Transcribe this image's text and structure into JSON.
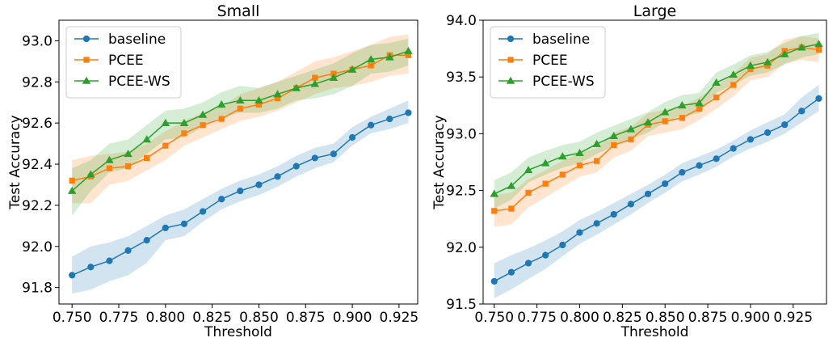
{
  "chart_data": [
    {
      "type": "line",
      "title": "Small",
      "xlabel": "Threshold",
      "ylabel": "Test Accuracy",
      "xlim": [
        0.743,
        0.935
      ],
      "ylim": [
        91.72,
        93.1
      ],
      "xticks": [
        0.75,
        0.775,
        0.8,
        0.825,
        0.85,
        0.875,
        0.9,
        0.925
      ],
      "xtick_labels": [
        "0.750",
        "0.775",
        "0.800",
        "0.825",
        "0.850",
        "0.875",
        "0.900",
        "0.925"
      ],
      "yticks": [
        91.8,
        92.0,
        92.2,
        92.4,
        92.6,
        92.8,
        93.0
      ],
      "ytick_labels": [
        "91.8",
        "92.0",
        "92.2",
        "92.4",
        "92.6",
        "92.8",
        "93.0"
      ],
      "legend_position": "top-left",
      "shaded_band": true,
      "x": [
        0.75,
        0.76,
        0.77,
        0.78,
        0.79,
        0.8,
        0.81,
        0.82,
        0.83,
        0.84,
        0.85,
        0.86,
        0.87,
        0.88,
        0.89,
        0.9,
        0.91,
        0.92,
        0.93
      ],
      "series": [
        {
          "name": "baseline",
          "color": "#1f77b4",
          "marker": "circle",
          "values": [
            91.86,
            91.9,
            91.93,
            91.98,
            92.03,
            92.09,
            92.11,
            92.17,
            92.23,
            92.27,
            92.3,
            92.34,
            92.39,
            92.43,
            92.45,
            92.53,
            92.59,
            92.62,
            92.65
          ],
          "lower": [
            91.77,
            91.79,
            91.83,
            91.86,
            91.92,
            92.03,
            92.05,
            92.12,
            92.18,
            92.22,
            92.25,
            92.29,
            92.34,
            92.38,
            92.41,
            92.49,
            92.55,
            92.57,
            92.6
          ],
          "upper": [
            91.95,
            92.0,
            92.02,
            92.05,
            92.1,
            92.15,
            92.18,
            92.23,
            92.28,
            92.32,
            92.35,
            92.39,
            92.44,
            92.48,
            92.5,
            92.58,
            92.63,
            92.67,
            92.71
          ]
        },
        {
          "name": "PCEE",
          "color": "#ff7f0e",
          "marker": "square",
          "values": [
            92.32,
            92.34,
            92.38,
            92.39,
            92.43,
            92.49,
            92.55,
            92.59,
            92.62,
            92.67,
            92.69,
            92.72,
            92.77,
            92.82,
            92.84,
            92.86,
            92.88,
            92.93,
            92.93
          ],
          "lower": [
            92.21,
            92.21,
            92.3,
            92.32,
            92.37,
            92.42,
            92.49,
            92.53,
            92.57,
            92.61,
            92.63,
            92.66,
            92.7,
            92.74,
            92.77,
            92.78,
            92.8,
            92.83,
            92.84
          ],
          "upper": [
            92.42,
            92.44,
            92.45,
            92.46,
            92.5,
            92.56,
            92.61,
            92.65,
            92.68,
            92.74,
            92.77,
            92.8,
            92.85,
            92.9,
            92.92,
            92.95,
            92.98,
            93.02,
            93.03
          ]
        },
        {
          "name": "PCEE-WS",
          "color": "#2ca02c",
          "marker": "triangle",
          "values": [
            92.27,
            92.35,
            92.42,
            92.45,
            92.52,
            92.6,
            92.6,
            92.64,
            92.69,
            92.71,
            92.71,
            92.74,
            92.77,
            92.79,
            92.82,
            92.86,
            92.91,
            92.92,
            92.95
          ],
          "lower": [
            92.15,
            92.27,
            92.36,
            92.38,
            92.45,
            92.52,
            92.53,
            92.58,
            92.63,
            92.65,
            92.65,
            92.67,
            92.71,
            92.72,
            92.74,
            92.78,
            92.84,
            92.85,
            92.88
          ],
          "upper": [
            92.38,
            92.42,
            92.5,
            92.52,
            92.59,
            92.66,
            92.67,
            92.7,
            92.75,
            92.78,
            92.77,
            92.8,
            92.83,
            92.86,
            92.89,
            92.94,
            92.98,
            92.99,
            93.01
          ]
        }
      ]
    },
    {
      "type": "line",
      "title": "Large",
      "xlabel": "Threshold",
      "ylabel": "Test Accuracy",
      "xlim": [
        0.7435,
        0.9445
      ],
      "ylim": [
        91.5,
        94.0
      ],
      "xticks": [
        0.75,
        0.775,
        0.8,
        0.825,
        0.85,
        0.875,
        0.9,
        0.925
      ],
      "xtick_labels": [
        "0.750",
        "0.775",
        "0.800",
        "0.825",
        "0.850",
        "0.875",
        "0.900",
        "0.925"
      ],
      "yticks": [
        91.5,
        92.0,
        92.5,
        93.0,
        93.5,
        94.0
      ],
      "ytick_labels": [
        "91.5",
        "92.0",
        "92.5",
        "93.0",
        "93.5",
        "94.0"
      ],
      "legend_position": "top-left",
      "shaded_band": true,
      "x": [
        0.75,
        0.76,
        0.77,
        0.78,
        0.79,
        0.8,
        0.81,
        0.82,
        0.83,
        0.84,
        0.85,
        0.86,
        0.87,
        0.88,
        0.89,
        0.9,
        0.91,
        0.92,
        0.93,
        0.94
      ],
      "series": [
        {
          "name": "baseline",
          "color": "#1f77b4",
          "marker": "circle",
          "values": [
            91.7,
            91.78,
            91.86,
            91.93,
            92.02,
            92.13,
            92.21,
            92.29,
            92.38,
            92.47,
            92.56,
            92.66,
            92.72,
            92.78,
            92.87,
            92.95,
            93.01,
            93.08,
            93.2,
            93.31
          ],
          "lower": [
            91.55,
            91.63,
            91.72,
            91.81,
            91.92,
            92.03,
            92.11,
            92.2,
            92.29,
            92.39,
            92.48,
            92.58,
            92.64,
            92.71,
            92.8,
            92.87,
            92.93,
            93.0,
            93.1,
            93.2
          ],
          "upper": [
            91.86,
            91.93,
            91.99,
            92.06,
            92.14,
            92.24,
            92.31,
            92.39,
            92.47,
            92.55,
            92.64,
            92.74,
            92.8,
            92.86,
            92.94,
            93.03,
            93.1,
            93.17,
            93.32,
            93.43
          ]
        },
        {
          "name": "PCEE",
          "color": "#ff7f0e",
          "marker": "square",
          "values": [
            92.32,
            92.34,
            92.48,
            92.56,
            92.64,
            92.72,
            92.76,
            92.9,
            92.95,
            93.08,
            93.11,
            93.14,
            93.22,
            93.32,
            93.43,
            93.57,
            93.6,
            93.73,
            93.76,
            93.74
          ],
          "lower": [
            92.18,
            92.2,
            92.35,
            92.44,
            92.53,
            92.62,
            92.66,
            92.79,
            92.85,
            92.98,
            93.01,
            93.04,
            93.12,
            93.22,
            93.33,
            93.47,
            93.5,
            93.62,
            93.65,
            93.63
          ],
          "upper": [
            92.46,
            92.48,
            92.6,
            92.68,
            92.76,
            92.83,
            92.87,
            93.01,
            93.06,
            93.18,
            93.21,
            93.24,
            93.32,
            93.42,
            93.53,
            93.67,
            93.7,
            93.83,
            93.86,
            93.84
          ]
        },
        {
          "name": "PCEE-WS",
          "color": "#2ca02c",
          "marker": "triangle",
          "values": [
            92.47,
            92.54,
            92.68,
            92.74,
            92.8,
            92.83,
            92.91,
            92.98,
            93.04,
            93.1,
            93.19,
            93.25,
            93.27,
            93.45,
            93.52,
            93.6,
            93.63,
            93.7,
            93.76,
            93.79
          ],
          "lower": [
            92.34,
            92.42,
            92.57,
            92.64,
            92.7,
            92.74,
            92.82,
            92.89,
            92.95,
            93.01,
            93.1,
            93.16,
            93.18,
            93.36,
            93.43,
            93.51,
            93.54,
            93.61,
            93.67,
            93.7
          ],
          "upper": [
            92.59,
            92.66,
            92.79,
            92.85,
            92.9,
            92.93,
            93.01,
            93.07,
            93.13,
            93.19,
            93.28,
            93.34,
            93.36,
            93.54,
            93.61,
            93.69,
            93.72,
            93.8,
            93.86,
            93.89
          ]
        }
      ]
    }
  ]
}
